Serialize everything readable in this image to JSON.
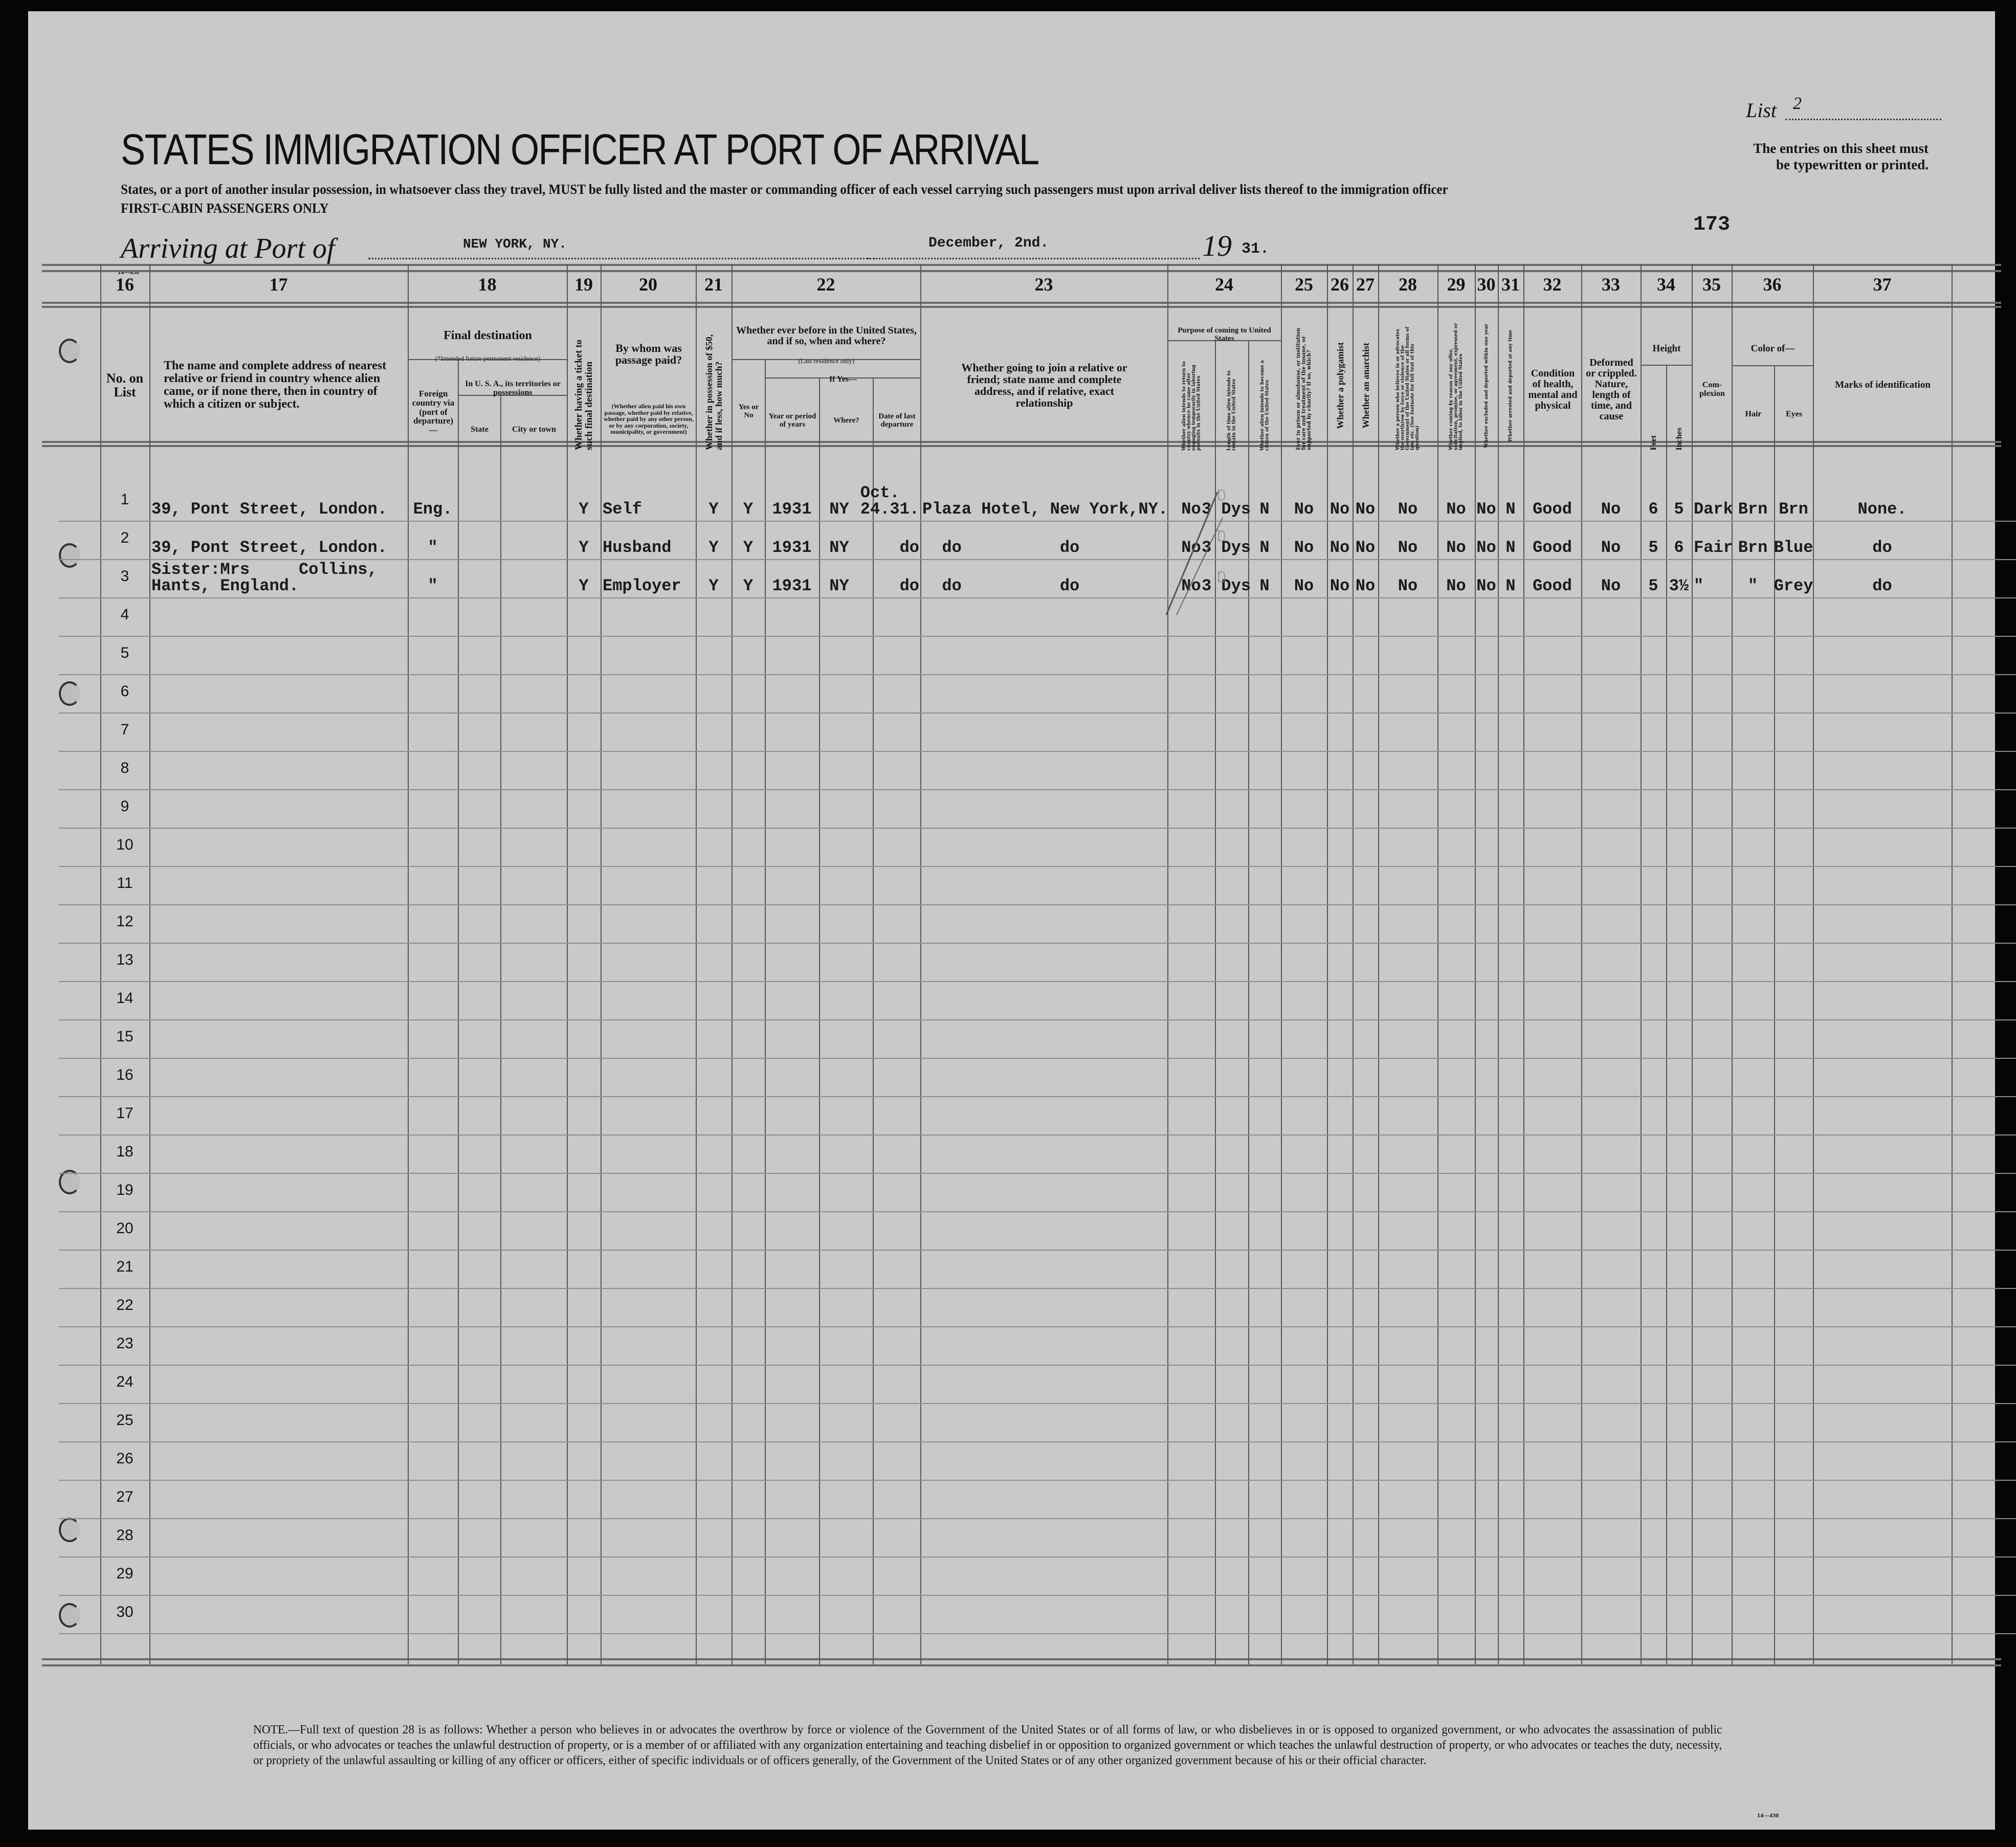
{
  "form": {
    "title": "STATES IMMIGRATION OFFICER AT PORT OF ARRIVAL",
    "subtitle": "States, or a port of another insular possession, in whatsoever class they travel, MUST be fully listed and the master or commanding officer of each vessel carrying such passengers must upon arrival deliver lists thereof to the immigration officer",
    "class_line": "FIRST-CABIN PASSENGERS ONLY",
    "list_label": "List",
    "list_value": "2",
    "instructions": "The entries on this sheet must be typewritten or printed.",
    "instructions_line1": "The entries on this sheet must",
    "instructions_line2": "be typewritten or printed.",
    "sheet_number": "173",
    "arriving_label": "Arriving at Port of",
    "port": "NEW YORK, NY.",
    "date": "December, 2nd.",
    "year_prefix": "19",
    "year_suffix": "31.",
    "form_code": "14—430"
  },
  "columns": {
    "numbers": [
      "16",
      "17",
      "18",
      "19",
      "20",
      "21",
      "22",
      "23",
      "24",
      "25",
      "26",
      "27",
      "28",
      "29",
      "30",
      "31",
      "32",
      "33",
      "34",
      "35",
      "36",
      "37"
    ],
    "h16": "No. on List",
    "h17": "The name and complete address of nearest relative or friend in country whence alien came, or if none there, then in country of which a citizen or subject.",
    "h18_group": "Final destination",
    "h18_note": "(*Intended future permanent residence)",
    "h18_foreign": "Foreign country via (port of departure)—",
    "h18_usa": "In U. S. A., its territories or possessions",
    "h18_state": "State",
    "h18_city": "City or town",
    "h19": "Whether having a ticket to such final destination",
    "h20": "By whom was passage paid?",
    "h20_note": "(Whether alien paid his own passage, whether paid by relative, whether paid by any other person, or by any corporation, society, municipality, or government)",
    "h21": "Whether in possession of $50, and if less, how much?",
    "h22": "Whether ever before in the United States, and if so, when and where?",
    "h22_note": "(Last residence only)",
    "h22_ifyes": "If Yes—",
    "h22_yesno": "Yes or No",
    "h22_year": "Year or period of years",
    "h22_where": "Where?",
    "h22_date": "Date of last departure",
    "h23": "Whether going to join a relative or friend; state name and complete address, and if relative, exact relationship",
    "h24": "Purpose of coming to United States",
    "h24_a": "Whether alien intends to return to country whence he came after engaging temporarily in laboring pursuits in the United States",
    "h24_b": "Length of time alien intends to remain in the United States",
    "h24_c": "Whether alien intends to become a citizen of the United States",
    "h25": "Ever in prison or almshouse, or institution for care and treatment of the insane, or supported by charity? If so, which?",
    "h26": "Whether a polygamist",
    "h27": "Whether an anarchist",
    "h28": "Whether a person who believes in or advocates the overthrow by force or violence of the Government of the United States or all forms of law, etc. (See footnote for full text of this question)",
    "h29": "Whether coming by reason of any offer, solicitation, promise, or agreement, expressed or implied, to labor in the United States",
    "h30": "Whether excluded and deported within one year",
    "h31": "Whether arrested and deported at any time",
    "h32": "Condition of health, mental and physical",
    "h33": "Deformed or crippled. Nature, length of time, and cause",
    "h34": "Height",
    "h34_feet": "Feet",
    "h34_inches": "Inches",
    "h35": "Com-plexion",
    "h36": "Color of—",
    "h36_hair": "Hair",
    "h36_eyes": "Eyes",
    "h37": "Marks of identification"
  },
  "row_numbers": [
    "1",
    "2",
    "3",
    "4",
    "5",
    "6",
    "7",
    "8",
    "9",
    "10",
    "11",
    "12",
    "13",
    "14",
    "15",
    "16",
    "17",
    "18",
    "19",
    "20",
    "21",
    "22",
    "23",
    "24",
    "25",
    "26",
    "27",
    "28",
    "29",
    "30"
  ],
  "rows": [
    {
      "relative": "39, Pont Street, London.",
      "foreign": "Eng.",
      "state": "",
      "city": "",
      "ticket": "Y",
      "paid_by": "Self",
      "possession": "Y",
      "before": "Y",
      "year": "1931",
      "where": "NY",
      "departure": "Oct.\n24.31.",
      "joining": "Plaza Hotel, New York,NY.",
      "return_intent": "No",
      "stay_length": "3 Dys",
      "citizen_intent": "N",
      "prison": "No",
      "polygamist": "No",
      "anarchist": "No",
      "q28": "No",
      "q29": "No",
      "excluded": "No",
      "arrested": "N",
      "health": "Good",
      "deformed": "No",
      "feet": "6",
      "inches": "5",
      "complexion": "Dark",
      "hair": "Brn",
      "eyes": "Brn",
      "marks": "None."
    },
    {
      "relative": "39, Pont Street, London.",
      "foreign": "\"",
      "state": "",
      "city": "",
      "ticket": "Y",
      "paid_by": "Husband",
      "possession": "Y",
      "before": "Y",
      "year": "1931",
      "where": "NY",
      "departure": "do",
      "joining": "  do          do",
      "return_intent": "No",
      "stay_length": "3 Dys",
      "citizen_intent": "N",
      "prison": "No",
      "polygamist": "No",
      "anarchist": "No",
      "q28": "No",
      "q29": "No",
      "excluded": "No",
      "arrested": "N",
      "health": "Good",
      "deformed": "No",
      "feet": "5",
      "inches": "6",
      "complexion": "Fair",
      "hair": "Brn",
      "eyes": "Blue",
      "marks": "do"
    },
    {
      "relative": "Sister:Mrs     Collins,\nHants, England.",
      "foreign": "\"",
      "state": "",
      "city": "",
      "ticket": "Y",
      "paid_by": "Employer",
      "possession": "Y",
      "before": "Y",
      "year": "1931",
      "where": "NY",
      "departure": "do",
      "joining": "  do          do",
      "return_intent": "No",
      "stay_length": "3 Dys",
      "citizen_intent": "N",
      "prison": "No",
      "polygamist": "No",
      "anarchist": "No",
      "q28": "No",
      "q29": "No",
      "excluded": "No",
      "arrested": "N",
      "health": "Good",
      "deformed": "No",
      "feet": "5",
      "inches": "3½",
      "complexion": "\"",
      "hair": "\"",
      "eyes": "Grey",
      "marks": "do"
    }
  ],
  "footnote": "NOTE.—Full text of question 28 is as follows: Whether a person who believes in or advocates the overthrow by force or violence of the Government of the United States or of all forms of law, or who disbelieves in or is opposed to organized government, or who advocates the assassination of public officials, or who advocates or teaches the unlawful destruction of property, or is a member of or affiliated with any organization entertaining and teaching disbelief in or opposition to organized government or which teaches the unlawful destruction of property, or who advocates or teaches the duty, necessity, or propriety of the unlawful assaulting or killing of any officer or officers, either of specific individuals or of officers generally, of the Government of the United States or of any other organized government because of his or their official character.",
  "footer_code": "14—430",
  "colors": {
    "paper": "#c9c9c9",
    "ink": "#141414",
    "background": "#050505"
  }
}
